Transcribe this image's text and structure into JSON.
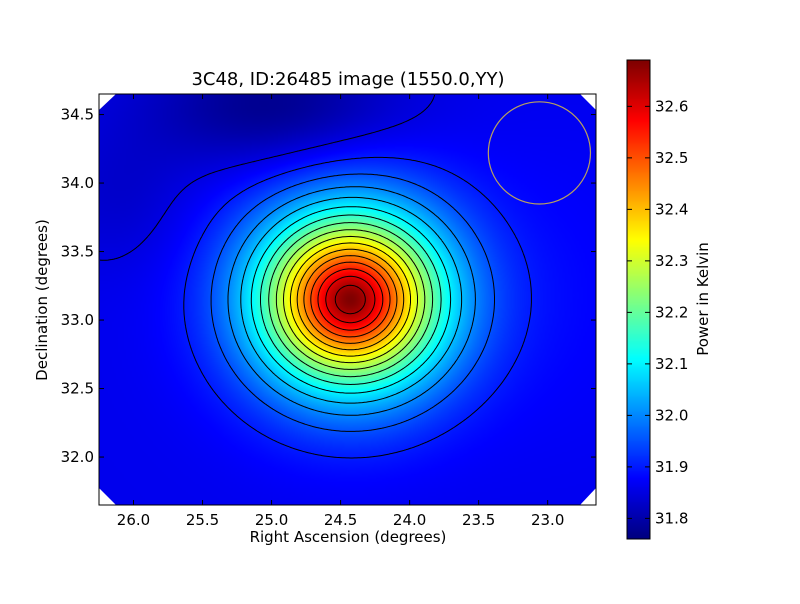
{
  "chart_data": [
    {
      "type": "heatmap",
      "title": "3C48, ID:26485 image (1550.0,YY)",
      "xlabel": "Right Ascension (degrees)",
      "ylabel": "Declination (degrees)",
      "xlim": [
        26.25,
        22.65
      ],
      "ylim": [
        31.65,
        34.65
      ],
      "x_ticks": [
        "26.0",
        "25.5",
        "25.0",
        "24.5",
        "24.0",
        "23.5",
        "23.0"
      ],
      "x_tick_values": [
        26.0,
        25.5,
        25.0,
        24.5,
        24.0,
        23.5,
        23.0
      ],
      "y_ticks": [
        "32.0",
        "32.5",
        "33.0",
        "33.5",
        "34.0",
        "34.5"
      ],
      "y_tick_values": [
        32.0,
        32.5,
        33.0,
        33.5,
        34.0,
        34.5
      ],
      "colormap": "jet",
      "peak": {
        "x": 24.43,
        "y": 33.15,
        "value": 32.69
      },
      "background_value": 31.86,
      "min_value": 31.76,
      "contour_levels": [
        31.85,
        31.9,
        31.95,
        32.0,
        32.05,
        32.1,
        32.15,
        32.2,
        32.25,
        32.3,
        32.35,
        32.4,
        32.45,
        32.5,
        32.55,
        32.6,
        32.65
      ],
      "beam_circle": {
        "x": 23.06,
        "y": 34.22,
        "radius_deg": 0.37,
        "color": "#b8a060"
      }
    },
    {
      "type": "colorbar",
      "label": "Power in Kelvin",
      "range": [
        31.76,
        32.69
      ],
      "ticks": [
        "31.8",
        "31.9",
        "32.0",
        "32.1",
        "32.2",
        "32.3",
        "32.4",
        "32.5",
        "32.6"
      ],
      "tick_values": [
        31.8,
        31.9,
        32.0,
        32.1,
        32.2,
        32.3,
        32.4,
        32.5,
        32.6
      ]
    }
  ]
}
